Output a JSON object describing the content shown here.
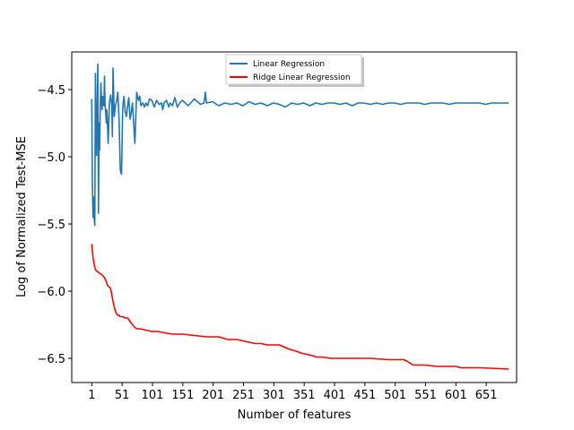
{
  "chart_data": {
    "type": "line",
    "title": "",
    "xlabel": "Number of features",
    "ylabel": "Log of Normalized Test-MSE",
    "xlim": [
      -32,
      701
    ],
    "ylim": [
      -6.68,
      -4.22
    ],
    "xticks": [
      1,
      51,
      101,
      151,
      201,
      251,
      301,
      351,
      401,
      451,
      501,
      551,
      601,
      651
    ],
    "xtick_labels": [
      "1",
      "51",
      "101",
      "151",
      "201",
      "251",
      "301",
      "351",
      "401",
      "451",
      "501",
      "551",
      "601",
      "651"
    ],
    "yticks": [
      -6.5,
      -6.0,
      -5.5,
      -5.0,
      -4.5
    ],
    "ytick_labels": [
      "−6.5",
      "−6.0",
      "−5.5",
      "−5.0",
      "−4.5"
    ],
    "grid": false,
    "legend": "upper center",
    "series": [
      {
        "name": "Linear Regression",
        "color": "#1f77b4",
        "x": [
          1,
          2,
          3,
          4,
          5,
          6,
          7,
          8,
          9,
          10,
          11,
          12,
          13,
          14,
          15,
          16,
          17,
          18,
          19,
          20,
          21,
          22,
          23,
          24,
          25,
          26,
          28,
          30,
          32,
          34,
          35,
          36,
          38,
          40,
          42,
          44,
          46,
          48,
          50,
          52,
          54,
          56,
          58,
          60,
          62,
          64,
          66,
          68,
          70,
          72,
          75,
          78,
          80,
          82,
          85,
          88,
          90,
          93,
          96,
          100,
          104,
          108,
          112,
          116,
          118,
          120,
          124,
          128,
          130,
          134,
          138,
          142,
          146,
          150,
          160,
          170,
          180,
          186,
          188,
          190,
          200,
          210,
          220,
          230,
          240,
          250,
          260,
          270,
          280,
          290,
          300,
          310,
          320,
          330,
          340,
          350,
          360,
          370,
          380,
          390,
          400,
          410,
          420,
          430,
          440,
          450,
          460,
          470,
          480,
          490,
          500,
          510,
          520,
          530,
          540,
          550,
          560,
          570,
          580,
          590,
          600,
          610,
          620,
          630,
          640,
          650,
          660,
          670,
          680,
          688
        ],
        "y": [
          -4.57,
          -5.2,
          -5.45,
          -5.3,
          -5.46,
          -5.51,
          -4.38,
          -4.85,
          -4.99,
          -4.6,
          -4.31,
          -5.42,
          -4.75,
          -4.95,
          -4.62,
          -4.45,
          -4.6,
          -4.65,
          -4.55,
          -4.6,
          -4.62,
          -4.4,
          -4.62,
          -4.68,
          -4.75,
          -4.65,
          -4.9,
          -4.6,
          -4.54,
          -4.62,
          -4.85,
          -4.34,
          -4.7,
          -4.62,
          -4.58,
          -4.52,
          -4.73,
          -5.1,
          -5.13,
          -4.64,
          -4.55,
          -4.66,
          -4.7,
          -4.62,
          -4.56,
          -4.72,
          -4.67,
          -4.6,
          -4.75,
          -4.9,
          -4.52,
          -4.58,
          -4.55,
          -4.62,
          -4.6,
          -4.63,
          -4.6,
          -4.62,
          -4.57,
          -4.58,
          -4.63,
          -4.58,
          -4.61,
          -4.6,
          -4.65,
          -4.6,
          -4.58,
          -4.63,
          -4.6,
          -4.62,
          -4.56,
          -4.63,
          -4.6,
          -4.58,
          -4.62,
          -4.57,
          -4.61,
          -4.6,
          -4.52,
          -4.6,
          -4.59,
          -4.62,
          -4.6,
          -4.61,
          -4.6,
          -4.62,
          -4.59,
          -4.61,
          -4.6,
          -4.62,
          -4.6,
          -4.61,
          -4.63,
          -4.6,
          -4.61,
          -4.6,
          -4.62,
          -4.6,
          -4.61,
          -4.6,
          -4.6,
          -4.61,
          -4.6,
          -4.62,
          -4.6,
          -4.6,
          -4.61,
          -4.6,
          -4.61,
          -4.6,
          -4.6,
          -4.61,
          -4.6,
          -4.6,
          -4.6,
          -4.61,
          -4.6,
          -4.6,
          -4.6,
          -4.61,
          -4.6,
          -4.6,
          -4.6,
          -4.6,
          -4.6,
          -4.61,
          -4.6,
          -4.6,
          -4.6,
          -4.6
        ]
      },
      {
        "name": "Ridge Linear Regression",
        "color": "#ff0000",
        "x": [
          1,
          3,
          5,
          7,
          9,
          12,
          15,
          18,
          22,
          25,
          27,
          30,
          32,
          35,
          37,
          40,
          42,
          44,
          46,
          48,
          52,
          56,
          60,
          68,
          72,
          75,
          80,
          90,
          100,
          110,
          120,
          135,
          145,
          150,
          170,
          190,
          210,
          225,
          230,
          240,
          250,
          260,
          270,
          280,
          290,
          310,
          320,
          325,
          340,
          345,
          355,
          365,
          370,
          380,
          395,
          430,
          460,
          490,
          500,
          510,
          515,
          520,
          530,
          545,
          550,
          570,
          600,
          610,
          620,
          640,
          688
        ],
        "y": [
          -5.65,
          -5.75,
          -5.8,
          -5.84,
          -5.85,
          -5.86,
          -5.87,
          -5.88,
          -5.9,
          -5.93,
          -5.96,
          -5.97,
          -5.98,
          -6.05,
          -6.1,
          -6.15,
          -6.17,
          -6.18,
          -6.18,
          -6.19,
          -6.19,
          -6.2,
          -6.2,
          -6.25,
          -6.27,
          -6.28,
          -6.28,
          -6.29,
          -6.3,
          -6.3,
          -6.31,
          -6.32,
          -6.32,
          -6.32,
          -6.33,
          -6.34,
          -6.34,
          -6.36,
          -6.36,
          -6.36,
          -6.37,
          -6.38,
          -6.39,
          -6.39,
          -6.4,
          -6.4,
          -6.42,
          -6.43,
          -6.45,
          -6.46,
          -6.47,
          -6.48,
          -6.49,
          -6.49,
          -6.5,
          -6.5,
          -6.5,
          -6.51,
          -6.51,
          -6.51,
          -6.51,
          -6.52,
          -6.55,
          -6.55,
          -6.55,
          -6.56,
          -6.56,
          -6.57,
          -6.57,
          -6.57,
          -6.58
        ]
      }
    ]
  }
}
